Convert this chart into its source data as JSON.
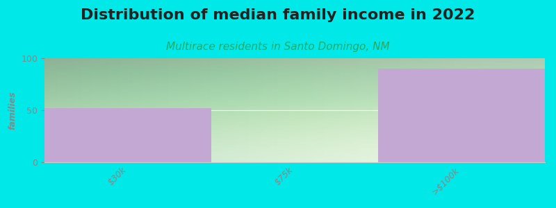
{
  "title": "Distribution of median family income in 2022",
  "subtitle": "Multirace residents in Santo Domingo, NM",
  "categories": [
    "$30k",
    "$75k",
    ">$100k"
  ],
  "values": [
    52,
    0,
    90
  ],
  "bar_color": "#c4a8d4",
  "background_color": "#00e8e8",
  "ylabel": "families",
  "ylim": [
    0,
    100
  ],
  "yticks": [
    0,
    50,
    100
  ],
  "title_fontsize": 16,
  "subtitle_fontsize": 11,
  "tick_label_fontsize": 9,
  "ylabel_fontsize": 9,
  "title_color": "#222222",
  "subtitle_color": "#22aa66",
  "tick_color": "#888888",
  "grad_top_color": "#e8f5e2",
  "grad_bottom_color": "#f8fff8"
}
